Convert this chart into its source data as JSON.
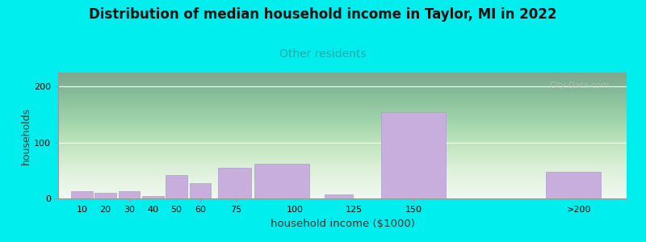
{
  "title": "Distribution of median household income in Taylor, MI in 2022",
  "subtitle": "Other residents",
  "xlabel": "household income ($1000)",
  "ylabel": "households",
  "title_fontsize": 12,
  "subtitle_fontsize": 10,
  "subtitle_color": "#22aaaa",
  "xlabel_fontsize": 9.5,
  "ylabel_fontsize": 9,
  "background_color": "#00eeee",
  "plot_bg_color_top": "#d4ecd4",
  "plot_bg_color_bottom": "#eaf5ea",
  "bar_color": "#c8aedd",
  "bar_edge_color": "#b09ccc",
  "values": [
    13,
    10,
    13,
    5,
    42,
    28,
    55,
    62,
    7,
    155,
    48
  ],
  "bar_lefts": [
    5,
    15,
    25,
    35,
    45,
    55,
    67,
    82,
    112,
    135,
    205
  ],
  "bar_widths": [
    10,
    10,
    10,
    10,
    10,
    10,
    15,
    25,
    13,
    30,
    25
  ],
  "tick_positions": [
    10,
    20,
    30,
    40,
    50,
    60,
    75,
    100,
    125,
    150,
    220
  ],
  "tick_labels": [
    "10",
    "20",
    "30",
    "40",
    "50",
    "60",
    "75",
    "100",
    "125",
    "150",
    ">200"
  ],
  "yticks": [
    0,
    100,
    200
  ],
  "ylim": [
    0,
    225
  ],
  "xlim": [
    0,
    240
  ],
  "watermark": "City-Data.com"
}
